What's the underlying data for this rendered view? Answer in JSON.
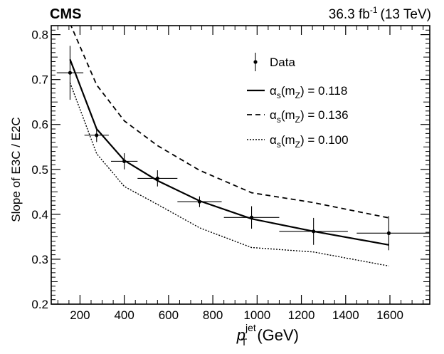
{
  "chart_data": {
    "type": "line",
    "experiment_label": "CMS",
    "lumi_label": {
      "value": "36.3 fb",
      "exponent": "-1",
      "energy": "(13 TeV)"
    },
    "xlabel": {
      "symbol": "p",
      "superscript": "jet",
      "subscript": "T",
      "unit": "(GeV)"
    },
    "ylabel": "Slope of E3C / E2C",
    "xlim": [
      70,
      1780
    ],
    "ylim": [
      0.2,
      0.82
    ],
    "xticks": [
      200,
      400,
      600,
      800,
      1000,
      1200,
      1400,
      1600
    ],
    "yticks": [
      0.2,
      0.3,
      0.4,
      0.5,
      0.6,
      0.7,
      0.8
    ],
    "xtick_labels": [
      "200",
      "400",
      "600",
      "800",
      "1000",
      "1200",
      "1400",
      "1600"
    ],
    "ytick_labels": [
      "0.2",
      "0.3",
      "0.4",
      "0.5",
      "0.6",
      "0.7",
      "0.8"
    ],
    "grid": false,
    "legend_position": "top-right",
    "data": {
      "name": "Data",
      "x": [
        155,
        275,
        400,
        550,
        740,
        975,
        1255,
        1595
      ],
      "y": [
        0.715,
        0.576,
        0.518,
        0.48,
        0.428,
        0.393,
        0.362,
        0.358
      ],
      "xerr_low": [
        60,
        55,
        60,
        90,
        100,
        125,
        155,
        145
      ],
      "xerr_high": [
        60,
        55,
        60,
        90,
        100,
        125,
        155,
        215
      ],
      "yerr": [
        0.06,
        0.015,
        0.018,
        0.018,
        0.012,
        0.025,
        0.03,
        0.038
      ]
    },
    "series": [
      {
        "name": "αs(mZ) = 0.118",
        "style": "solid",
        "x": [
          155,
          275,
          400,
          550,
          740,
          975,
          1255,
          1595
        ],
        "y": [
          0.745,
          0.59,
          0.52,
          0.475,
          0.43,
          0.39,
          0.362,
          0.332
        ]
      },
      {
        "name": "αs(mZ) = 0.136",
        "style": "dashed",
        "x": [
          155,
          275,
          400,
          550,
          740,
          975,
          1255,
          1595
        ],
        "y": [
          0.825,
          0.688,
          0.608,
          0.553,
          0.498,
          0.448,
          0.426,
          0.392
        ]
      },
      {
        "name": "αs(mZ) = 0.100",
        "style": "dotted",
        "x": [
          155,
          275,
          400,
          550,
          740,
          975,
          1255,
          1595
        ],
        "y": [
          0.693,
          0.535,
          0.462,
          0.422,
          0.37,
          0.326,
          0.316,
          0.285
        ]
      }
    ],
    "legend": [
      {
        "key": "data",
        "label": "Data"
      },
      {
        "key": "solid",
        "symbol": "α",
        "sub1": "s",
        "mid": "(m",
        "sub2": "Z",
        "tail": ") = 0.118"
      },
      {
        "key": "dashed",
        "symbol": "α",
        "sub1": "s",
        "mid": "(m",
        "sub2": "Z",
        "tail": ") = 0.136"
      },
      {
        "key": "dotted",
        "symbol": "α",
        "sub1": "s",
        "mid": "(m",
        "sub2": "Z",
        "tail": ") = 0.100"
      }
    ]
  }
}
